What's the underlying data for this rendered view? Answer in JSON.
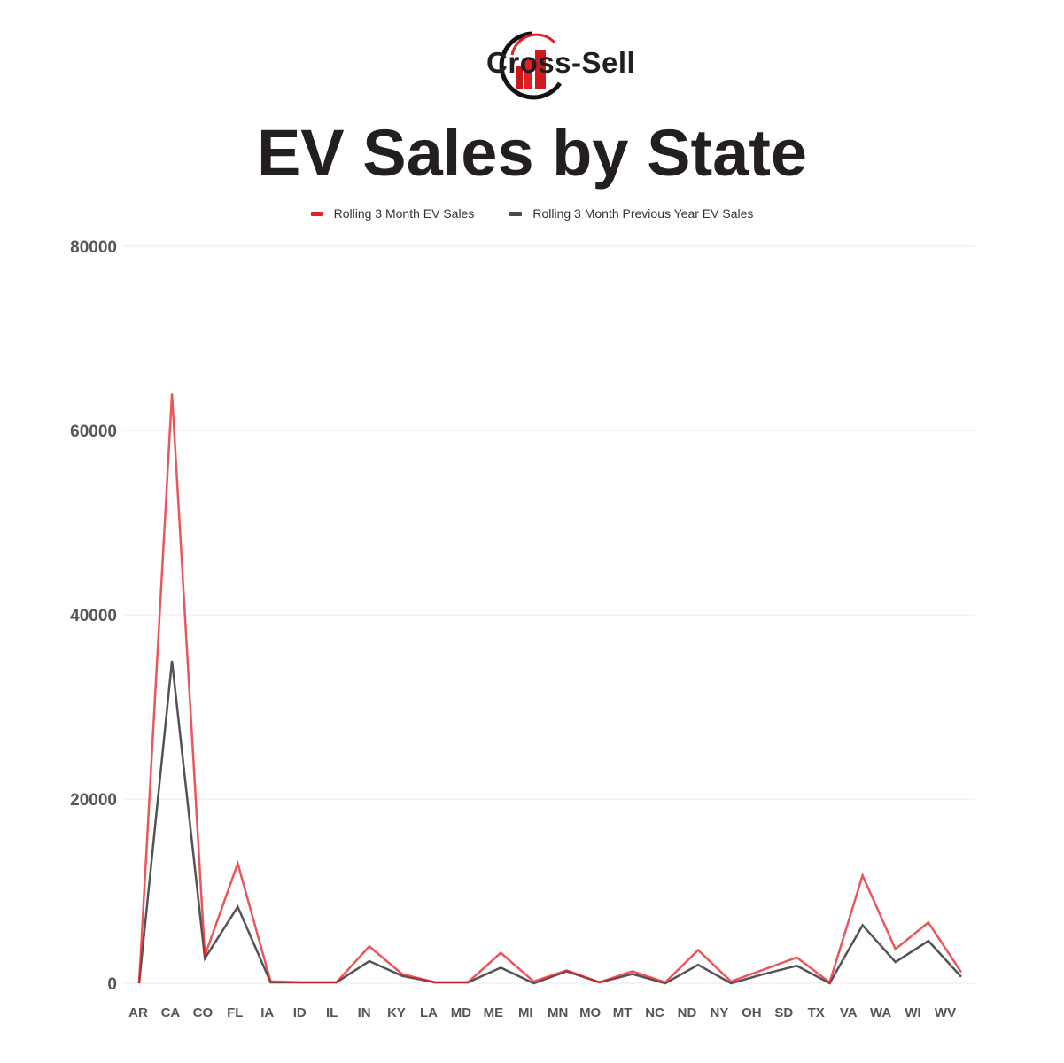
{
  "brand": {
    "name": "Cross-Sell"
  },
  "chart_data": {
    "type": "line",
    "title": "EV Sales by State",
    "xlabel": "",
    "ylabel": "",
    "ylim": [
      0,
      80000
    ],
    "yticks": [
      0,
      20000,
      40000,
      60000,
      80000
    ],
    "grid": true,
    "legend_placement": "top",
    "categories": [
      "AR",
      "CA",
      "CO",
      "FL",
      "IA",
      "ID",
      "IL",
      "IN",
      "KY",
      "LA",
      "MD",
      "ME",
      "MI",
      "MN",
      "MO",
      "MT",
      "NC",
      "ND",
      "NY",
      "OH",
      "SD",
      "TX",
      "VA",
      "WA",
      "WI",
      "WV"
    ],
    "series": [
      {
        "name": "Rolling 3 Month EV Sales",
        "color": "#e31e24",
        "values": [
          0,
          64000,
          3000,
          13000,
          200,
          100,
          100,
          4000,
          1000,
          100,
          100,
          3300,
          200,
          1400,
          100,
          1300,
          100,
          3600,
          200,
          1500,
          2800,
          100,
          11700,
          3700,
          6600,
          1200
        ]
      },
      {
        "name": "Rolling 3 Month Previous Year EV Sales",
        "color": "#4a4a4a",
        "values": [
          0,
          35000,
          2700,
          8300,
          100,
          100,
          100,
          2400,
          800,
          100,
          100,
          1700,
          0,
          1300,
          100,
          1000,
          0,
          2000,
          0,
          1000,
          1900,
          0,
          6300,
          2300,
          4600,
          700
        ]
      }
    ]
  }
}
